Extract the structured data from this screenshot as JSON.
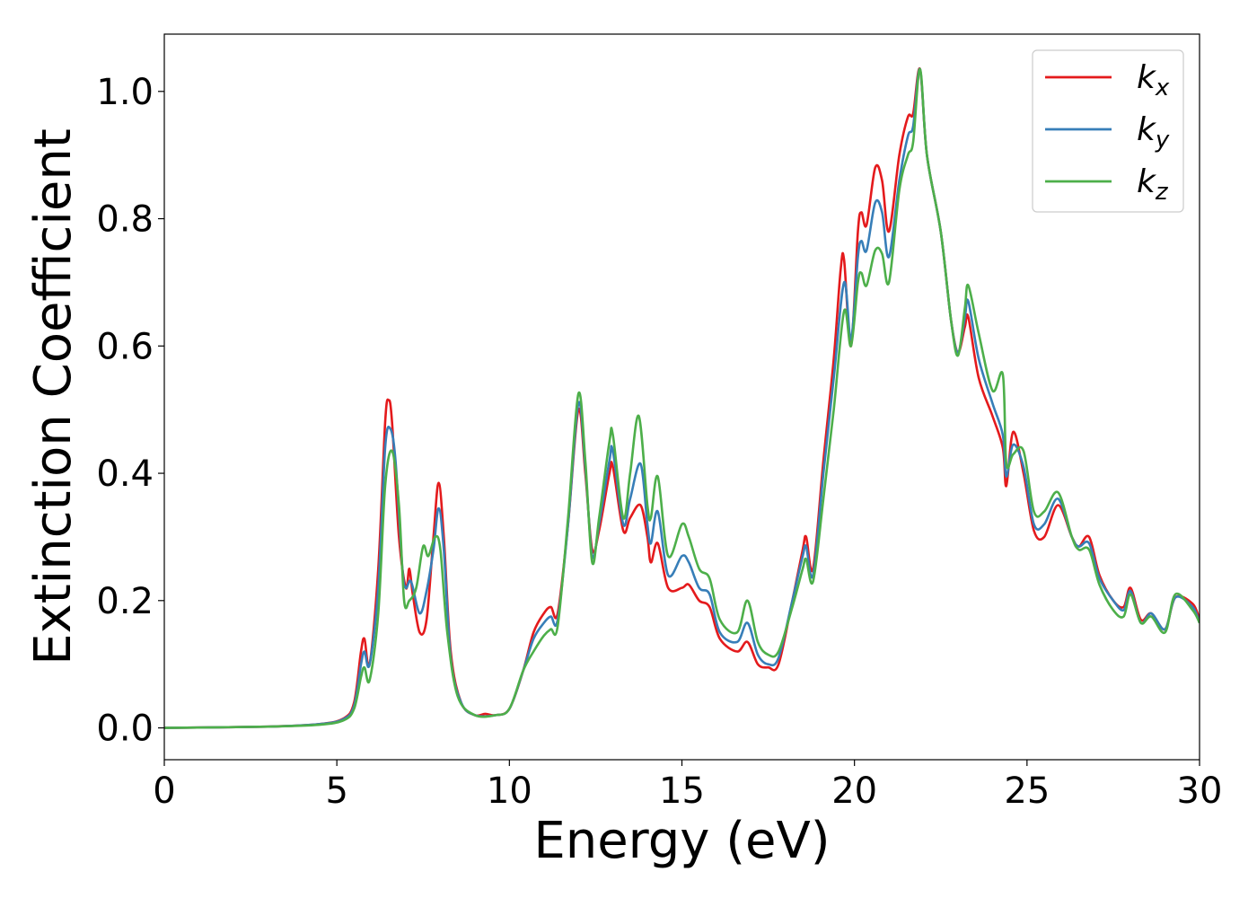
{
  "chart_data": {
    "type": "line",
    "title": "",
    "xlabel": "Energy (eV)",
    "ylabel": "Extinction Coefficient",
    "xlim": [
      0,
      30
    ],
    "ylim": [
      -0.05,
      1.09
    ],
    "xticks": [
      0,
      5,
      10,
      15,
      20,
      25,
      30
    ],
    "xtick_labels": [
      "0",
      "5",
      "10",
      "15",
      "20",
      "25",
      "30"
    ],
    "yticks": [
      0.0,
      0.2,
      0.4,
      0.6,
      0.8,
      1.0
    ],
    "ytick_labels": [
      "0.0",
      "0.2",
      "0.4",
      "0.6",
      "0.8",
      "1.0"
    ],
    "grid": false,
    "legend_position": "top-right",
    "series": [
      {
        "name": "kx",
        "label_main": "k",
        "label_sub": "x",
        "color": "#e41a1c",
        "points": [
          [
            0,
            0
          ],
          [
            3,
            0.002
          ],
          [
            4.5,
            0.006
          ],
          [
            5.2,
            0.015
          ],
          [
            5.5,
            0.04
          ],
          [
            5.7,
            0.12
          ],
          [
            5.8,
            0.14
          ],
          [
            5.95,
            0.1
          ],
          [
            6.2,
            0.25
          ],
          [
            6.4,
            0.48
          ],
          [
            6.5,
            0.515
          ],
          [
            6.6,
            0.48
          ],
          [
            6.8,
            0.3
          ],
          [
            7.0,
            0.22
          ],
          [
            7.1,
            0.25
          ],
          [
            7.2,
            0.21
          ],
          [
            7.4,
            0.15
          ],
          [
            7.6,
            0.17
          ],
          [
            7.8,
            0.3
          ],
          [
            7.95,
            0.385
          ],
          [
            8.1,
            0.3
          ],
          [
            8.3,
            0.12
          ],
          [
            8.6,
            0.04
          ],
          [
            9.0,
            0.02
          ],
          [
            9.3,
            0.022
          ],
          [
            9.6,
            0.02
          ],
          [
            10.0,
            0.03
          ],
          [
            10.4,
            0.09
          ],
          [
            10.7,
            0.15
          ],
          [
            11.0,
            0.18
          ],
          [
            11.2,
            0.19
          ],
          [
            11.4,
            0.18
          ],
          [
            11.7,
            0.32
          ],
          [
            12.0,
            0.5
          ],
          [
            12.2,
            0.4
          ],
          [
            12.4,
            0.28
          ],
          [
            12.6,
            0.31
          ],
          [
            12.9,
            0.4
          ],
          [
            13.0,
            0.41
          ],
          [
            13.3,
            0.31
          ],
          [
            13.5,
            0.33
          ],
          [
            13.8,
            0.35
          ],
          [
            14.0,
            0.3
          ],
          [
            14.1,
            0.26
          ],
          [
            14.3,
            0.29
          ],
          [
            14.6,
            0.22
          ],
          [
            15.0,
            0.22
          ],
          [
            15.2,
            0.225
          ],
          [
            15.5,
            0.2
          ],
          [
            15.8,
            0.19
          ],
          [
            16.1,
            0.14
          ],
          [
            16.6,
            0.12
          ],
          [
            16.9,
            0.135
          ],
          [
            17.2,
            0.1
          ],
          [
            17.5,
            0.095
          ],
          [
            17.8,
            0.1
          ],
          [
            18.2,
            0.2
          ],
          [
            18.5,
            0.28
          ],
          [
            18.6,
            0.3
          ],
          [
            18.8,
            0.25
          ],
          [
            19.1,
            0.42
          ],
          [
            19.4,
            0.58
          ],
          [
            19.6,
            0.72
          ],
          [
            19.7,
            0.735
          ],
          [
            19.9,
            0.6
          ],
          [
            20.1,
            0.78
          ],
          [
            20.2,
            0.81
          ],
          [
            20.35,
            0.79
          ],
          [
            20.6,
            0.88
          ],
          [
            20.8,
            0.86
          ],
          [
            21.0,
            0.78
          ],
          [
            21.3,
            0.9
          ],
          [
            21.55,
            0.96
          ],
          [
            21.7,
            0.965
          ],
          [
            21.9,
            1.035
          ],
          [
            22.1,
            0.9
          ],
          [
            22.5,
            0.78
          ],
          [
            22.8,
            0.64
          ],
          [
            23.0,
            0.59
          ],
          [
            23.2,
            0.63
          ],
          [
            23.3,
            0.645
          ],
          [
            23.6,
            0.55
          ],
          [
            24.0,
            0.49
          ],
          [
            24.3,
            0.44
          ],
          [
            24.4,
            0.38
          ],
          [
            24.6,
            0.465
          ],
          [
            24.9,
            0.4
          ],
          [
            25.2,
            0.31
          ],
          [
            25.5,
            0.3
          ],
          [
            25.9,
            0.35
          ],
          [
            26.3,
            0.3
          ],
          [
            26.5,
            0.285
          ],
          [
            26.8,
            0.3
          ],
          [
            27.1,
            0.24
          ],
          [
            27.5,
            0.2
          ],
          [
            27.8,
            0.19
          ],
          [
            28.0,
            0.22
          ],
          [
            28.3,
            0.17
          ],
          [
            28.6,
            0.18
          ],
          [
            29.0,
            0.155
          ],
          [
            29.3,
            0.205
          ],
          [
            29.8,
            0.195
          ],
          [
            30,
            0.17
          ]
        ]
      },
      {
        "name": "ky",
        "label_main": "k",
        "label_sub": "y",
        "color": "#377eb8",
        "points": [
          [
            0,
            0
          ],
          [
            3,
            0.002
          ],
          [
            4.5,
            0.006
          ],
          [
            5.2,
            0.014
          ],
          [
            5.5,
            0.035
          ],
          [
            5.7,
            0.1
          ],
          [
            5.8,
            0.12
          ],
          [
            5.95,
            0.1
          ],
          [
            6.2,
            0.22
          ],
          [
            6.4,
            0.44
          ],
          [
            6.55,
            0.47
          ],
          [
            6.7,
            0.42
          ],
          [
            6.9,
            0.25
          ],
          [
            7.0,
            0.22
          ],
          [
            7.15,
            0.23
          ],
          [
            7.4,
            0.18
          ],
          [
            7.6,
            0.215
          ],
          [
            7.8,
            0.28
          ],
          [
            7.95,
            0.345
          ],
          [
            8.1,
            0.28
          ],
          [
            8.3,
            0.11
          ],
          [
            8.6,
            0.04
          ],
          [
            9.0,
            0.02
          ],
          [
            9.6,
            0.02
          ],
          [
            10.0,
            0.03
          ],
          [
            10.4,
            0.09
          ],
          [
            10.7,
            0.14
          ],
          [
            11.0,
            0.165
          ],
          [
            11.2,
            0.175
          ],
          [
            11.4,
            0.17
          ],
          [
            11.7,
            0.32
          ],
          [
            12.0,
            0.51
          ],
          [
            12.2,
            0.41
          ],
          [
            12.4,
            0.27
          ],
          [
            12.6,
            0.32
          ],
          [
            12.9,
            0.42
          ],
          [
            13.0,
            0.435
          ],
          [
            13.3,
            0.32
          ],
          [
            13.5,
            0.36
          ],
          [
            13.8,
            0.415
          ],
          [
            14.0,
            0.32
          ],
          [
            14.1,
            0.29
          ],
          [
            14.3,
            0.34
          ],
          [
            14.6,
            0.24
          ],
          [
            15.0,
            0.27
          ],
          [
            15.2,
            0.26
          ],
          [
            15.5,
            0.22
          ],
          [
            15.8,
            0.21
          ],
          [
            16.1,
            0.15
          ],
          [
            16.6,
            0.135
          ],
          [
            16.9,
            0.165
          ],
          [
            17.2,
            0.115
          ],
          [
            17.5,
            0.1
          ],
          [
            17.8,
            0.11
          ],
          [
            18.2,
            0.2
          ],
          [
            18.5,
            0.27
          ],
          [
            18.6,
            0.285
          ],
          [
            18.8,
            0.24
          ],
          [
            19.1,
            0.4
          ],
          [
            19.4,
            0.55
          ],
          [
            19.7,
            0.7
          ],
          [
            19.9,
            0.61
          ],
          [
            20.1,
            0.74
          ],
          [
            20.2,
            0.765
          ],
          [
            20.35,
            0.75
          ],
          [
            20.6,
            0.825
          ],
          [
            20.8,
            0.81
          ],
          [
            21.0,
            0.74
          ],
          [
            21.3,
            0.86
          ],
          [
            21.55,
            0.93
          ],
          [
            21.7,
            0.945
          ],
          [
            21.9,
            1.035
          ],
          [
            22.1,
            0.9
          ],
          [
            22.5,
            0.78
          ],
          [
            22.8,
            0.64
          ],
          [
            23.0,
            0.59
          ],
          [
            23.2,
            0.645
          ],
          [
            23.3,
            0.67
          ],
          [
            23.6,
            0.58
          ],
          [
            24.0,
            0.51
          ],
          [
            24.3,
            0.46
          ],
          [
            24.4,
            0.395
          ],
          [
            24.6,
            0.445
          ],
          [
            24.9,
            0.41
          ],
          [
            25.2,
            0.32
          ],
          [
            25.5,
            0.32
          ],
          [
            25.9,
            0.36
          ],
          [
            26.3,
            0.3
          ],
          [
            26.5,
            0.285
          ],
          [
            26.8,
            0.29
          ],
          [
            27.1,
            0.235
          ],
          [
            27.5,
            0.2
          ],
          [
            27.8,
            0.185
          ],
          [
            28.0,
            0.215
          ],
          [
            28.3,
            0.165
          ],
          [
            28.6,
            0.18
          ],
          [
            29.0,
            0.155
          ],
          [
            29.3,
            0.205
          ],
          [
            29.8,
            0.19
          ],
          [
            30,
            0.165
          ]
        ]
      },
      {
        "name": "kz",
        "label_main": "k",
        "label_sub": "z",
        "color": "#4daf4a",
        "points": [
          [
            0,
            0
          ],
          [
            3,
            0.002
          ],
          [
            4.5,
            0.005
          ],
          [
            5.2,
            0.012
          ],
          [
            5.5,
            0.03
          ],
          [
            5.7,
            0.08
          ],
          [
            5.8,
            0.095
          ],
          [
            5.95,
            0.075
          ],
          [
            6.2,
            0.18
          ],
          [
            6.4,
            0.38
          ],
          [
            6.6,
            0.435
          ],
          [
            6.8,
            0.35
          ],
          [
            6.95,
            0.2
          ],
          [
            7.1,
            0.2
          ],
          [
            7.3,
            0.22
          ],
          [
            7.5,
            0.285
          ],
          [
            7.65,
            0.27
          ],
          [
            7.85,
            0.3
          ],
          [
            8.0,
            0.28
          ],
          [
            8.2,
            0.15
          ],
          [
            8.5,
            0.05
          ],
          [
            9.0,
            0.02
          ],
          [
            9.6,
            0.02
          ],
          [
            10.0,
            0.03
          ],
          [
            10.4,
            0.09
          ],
          [
            10.7,
            0.12
          ],
          [
            11.0,
            0.145
          ],
          [
            11.2,
            0.155
          ],
          [
            11.4,
            0.16
          ],
          [
            11.7,
            0.33
          ],
          [
            12.0,
            0.525
          ],
          [
            12.2,
            0.42
          ],
          [
            12.4,
            0.26
          ],
          [
            12.6,
            0.33
          ],
          [
            12.9,
            0.45
          ],
          [
            13.0,
            0.46
          ],
          [
            13.3,
            0.33
          ],
          [
            13.5,
            0.4
          ],
          [
            13.75,
            0.49
          ],
          [
            14.0,
            0.35
          ],
          [
            14.1,
            0.33
          ],
          [
            14.3,
            0.395
          ],
          [
            14.6,
            0.27
          ],
          [
            15.0,
            0.32
          ],
          [
            15.2,
            0.3
          ],
          [
            15.5,
            0.25
          ],
          [
            15.8,
            0.235
          ],
          [
            16.1,
            0.17
          ],
          [
            16.6,
            0.15
          ],
          [
            16.9,
            0.2
          ],
          [
            17.2,
            0.135
          ],
          [
            17.5,
            0.115
          ],
          [
            17.8,
            0.12
          ],
          [
            18.2,
            0.19
          ],
          [
            18.5,
            0.25
          ],
          [
            18.6,
            0.265
          ],
          [
            18.8,
            0.23
          ],
          [
            19.1,
            0.36
          ],
          [
            19.4,
            0.5
          ],
          [
            19.7,
            0.655
          ],
          [
            19.9,
            0.6
          ],
          [
            20.1,
            0.7
          ],
          [
            20.2,
            0.715
          ],
          [
            20.35,
            0.695
          ],
          [
            20.6,
            0.75
          ],
          [
            20.8,
            0.745
          ],
          [
            21.0,
            0.7
          ],
          [
            21.3,
            0.845
          ],
          [
            21.55,
            0.9
          ],
          [
            21.7,
            0.92
          ],
          [
            21.9,
            1.035
          ],
          [
            22.1,
            0.9
          ],
          [
            22.5,
            0.78
          ],
          [
            22.8,
            0.64
          ],
          [
            23.0,
            0.585
          ],
          [
            23.2,
            0.66
          ],
          [
            23.3,
            0.695
          ],
          [
            23.6,
            0.62
          ],
          [
            24.0,
            0.53
          ],
          [
            24.3,
            0.555
          ],
          [
            24.4,
            0.415
          ],
          [
            24.6,
            0.43
          ],
          [
            24.9,
            0.435
          ],
          [
            25.2,
            0.34
          ],
          [
            25.5,
            0.34
          ],
          [
            25.9,
            0.37
          ],
          [
            26.3,
            0.3
          ],
          [
            26.5,
            0.28
          ],
          [
            26.8,
            0.28
          ],
          [
            27.1,
            0.225
          ],
          [
            27.5,
            0.185
          ],
          [
            27.8,
            0.175
          ],
          [
            28.0,
            0.21
          ],
          [
            28.3,
            0.165
          ],
          [
            28.6,
            0.175
          ],
          [
            29.0,
            0.15
          ],
          [
            29.3,
            0.21
          ],
          [
            29.8,
            0.185
          ],
          [
            30,
            0.165
          ]
        ]
      }
    ]
  }
}
